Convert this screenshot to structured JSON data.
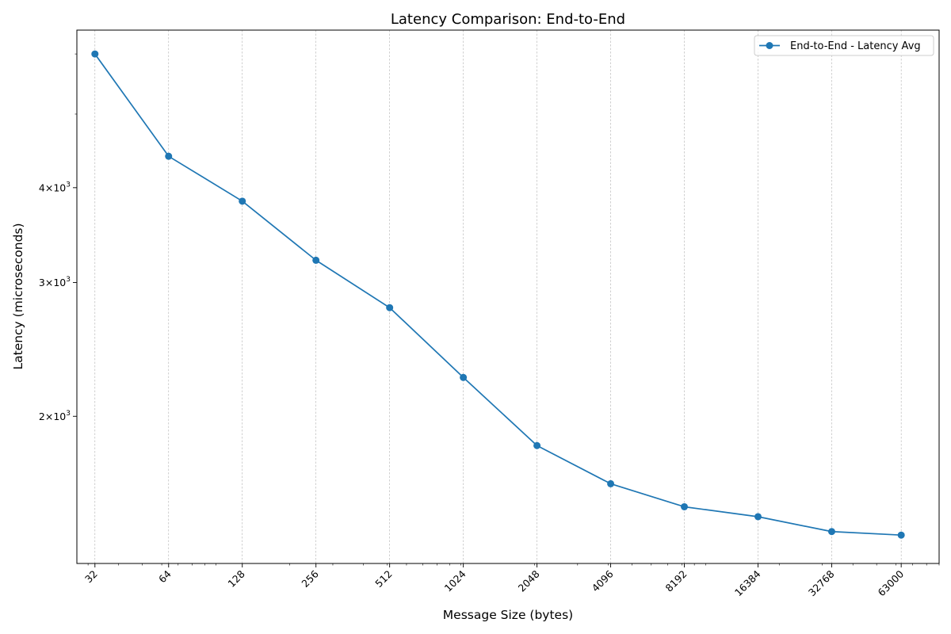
{
  "chart_data": {
    "type": "line",
    "title": "Latency Comparison: End-to-End",
    "xlabel": "Message Size (bytes)",
    "ylabel": "Latency (microseconds)",
    "x_scale": "log2",
    "y_scale": "log",
    "x_tick_labels": [
      "32",
      "64",
      "128",
      "256",
      "512",
      "1024",
      "2048",
      "4096",
      "8192",
      "16384",
      "32768",
      "63000"
    ],
    "y_tick_labels": [
      {
        "value": 2000,
        "mantissa": "2",
        "base": "10",
        "exp": "3"
      },
      {
        "value": 3000,
        "mantissa": "3",
        "base": "10",
        "exp": "3"
      },
      {
        "value": 4000,
        "mantissa": "4",
        "base": "10",
        "exp": "3"
      }
    ],
    "xlim": [
      27,
      90000
    ],
    "ylim": [
      1280,
      6450
    ],
    "grid": "x-major-dashed",
    "legend_position": "top-right",
    "series": [
      {
        "name": "End-to-End - Latency Avg",
        "color": "#1f77b4",
        "marker": "circle",
        "x": [
          32,
          64,
          128,
          256,
          512,
          1024,
          2048,
          4096,
          8192,
          16384,
          32768,
          63000
        ],
        "y": [
          6000,
          4400,
          3840,
          3210,
          2780,
          2250,
          1830,
          1630,
          1520,
          1475,
          1410,
          1395
        ]
      }
    ]
  }
}
